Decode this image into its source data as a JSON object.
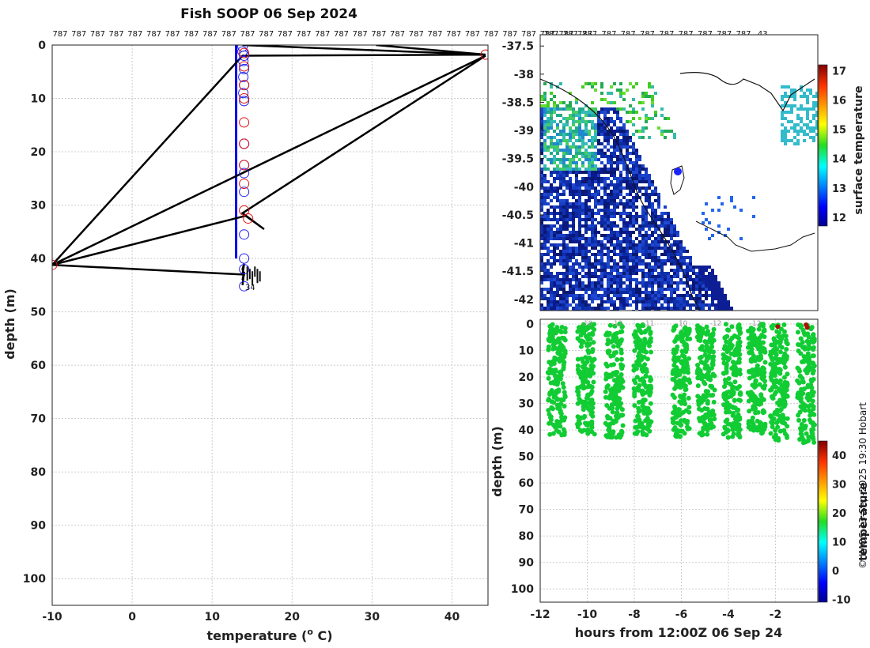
{
  "page": {
    "title": "Fish SOOP 06 Sep 2024",
    "credit": "© IMOS 13-Sep-2025 19:30 Hobart"
  },
  "chart_data": [
    {
      "id": "profile",
      "type": "line",
      "xlabel": "temperature (o C)",
      "xlabel_main": "temperature (",
      "xlabel_sup": "o",
      "xlabel_tail": " C)",
      "ylabel": "depth (m)",
      "xlim": [
        -10,
        44.5
      ],
      "ylim": [
        0,
        105
      ],
      "y_reversed": true,
      "x_ticks": [
        -10,
        0,
        10,
        20,
        30,
        40
      ],
      "y_ticks": [
        0,
        10,
        20,
        30,
        40,
        50,
        60,
        70,
        80,
        90,
        100
      ],
      "grid": true,
      "top_labels": [
        "787",
        "787",
        "787",
        "787",
        "787",
        "787",
        "787",
        "787",
        "787",
        "787",
        "787",
        "787",
        "787",
        "787",
        "787",
        "787",
        "787",
        "787",
        "787",
        "787",
        "787",
        "787",
        "787",
        "787",
        "787",
        "787",
        "787",
        "787",
        "787"
      ],
      "series": [
        {
          "name": "downcast",
          "color": "#0000ee",
          "x": [
            13.0,
            13.0
          ],
          "y": [
            0,
            40
          ]
        },
        {
          "name": "raw trace",
          "color": "#000000",
          "x": [
            30.5,
            44.2,
            13.8,
            44.2,
            13.8,
            -10.0,
            44.2,
            13.8,
            16.5,
            14.2,
            -10.0,
            13.8,
            14.0,
            13.8,
            14.0,
            13.8,
            14.0,
            13.8
          ],
          "y": [
            0,
            1.8,
            0,
            1.8,
            2.0,
            41.2,
            2.0,
            31.5,
            34.5,
            32.0,
            41.2,
            43.0,
            41.0,
            42.0,
            43.0,
            44.0,
            42.5,
            45.0
          ]
        }
      ],
      "blue_markers": [
        [
          13.8,
          0.3
        ],
        [
          13.8,
          1.2
        ],
        [
          14.0,
          2.0
        ],
        [
          13.9,
          3.0
        ],
        [
          14.0,
          4.5
        ],
        [
          13.9,
          6.0
        ],
        [
          14.0,
          7.5
        ],
        [
          13.9,
          9.0
        ],
        [
          14.0,
          10.5
        ],
        [
          14.0,
          18.5
        ],
        [
          14.0,
          22.5
        ],
        [
          14.0,
          24.0
        ],
        [
          14.0,
          27.5
        ],
        [
          14.0,
          35.5
        ],
        [
          14.0,
          40.0
        ],
        [
          14.0,
          42.0
        ],
        [
          14.0,
          45.2
        ]
      ],
      "red_markers": [
        [
          44.2,
          1.8
        ],
        [
          -10.0,
          41.2
        ],
        [
          14.0,
          1.5
        ],
        [
          14.0,
          4.0
        ],
        [
          14.0,
          7.5
        ],
        [
          14.0,
          10.0
        ],
        [
          14.0,
          14.5
        ],
        [
          14.0,
          18.5
        ],
        [
          14.0,
          22.5
        ],
        [
          14.0,
          26.0
        ],
        [
          14.0,
          31.0
        ],
        [
          14.5,
          32.5
        ]
      ],
      "annotation": "34"
    },
    {
      "id": "sst_map",
      "type": "heatmap",
      "ylim": [
        -42.2,
        -37.3
      ],
      "y_ticks": [
        -37.5,
        -38,
        -38.5,
        -39,
        -39.5,
        -40,
        -40.5,
        -41,
        -41.5,
        -42
      ],
      "top_labels": [
        "787",
        "787",
        "787",
        "787",
        "787",
        "787",
        "787",
        "787",
        "787",
        "787",
        "787",
        "43"
      ],
      "colorbar_label": "surface temperature",
      "colorbar_range": [
        11.7,
        17.2
      ],
      "colorbar_ticks": [
        12,
        13,
        14,
        15,
        16,
        17
      ],
      "vessel_marker": "blue dot"
    },
    {
      "id": "depth_time",
      "type": "scatter",
      "xlabel": "hours from 12:00Z 06 Sep 24",
      "ylabel": "depth (m)",
      "xlim": [
        -12,
        -0.2
      ],
      "ylim": [
        0,
        105
      ],
      "y_reversed": true,
      "x_ticks": [
        -12,
        -10,
        -8,
        -6,
        -4,
        -2
      ],
      "y_ticks": [
        0,
        10,
        20,
        30,
        40,
        50,
        60,
        70,
        80,
        90,
        100
      ],
      "colorbar_label": "temperature",
      "colorbar_range": [
        -11,
        45
      ],
      "colorbar_ticks": [
        -10,
        0,
        10,
        20,
        30,
        40
      ],
      "point_color": "#11cc33",
      "hot_color": "#aa1100",
      "bursts": [
        [
          -11.3,
          0,
          42
        ],
        [
          -10.05,
          0,
          42
        ],
        [
          -8.85,
          0,
          43
        ],
        [
          -7.65,
          0,
          42
        ],
        [
          -6.0,
          0,
          43
        ],
        [
          -4.95,
          0,
          42
        ],
        [
          -3.85,
          0,
          43
        ],
        [
          -2.8,
          0,
          42
        ],
        [
          -1.85,
          0,
          44
        ],
        [
          -0.7,
          0,
          45
        ]
      ],
      "top_labels": [
        "-10",
        "-12",
        "-11",
        "-10",
        "-12",
        "-12"
      ],
      "hot_points": [
        [
          -1.9,
          1.0
        ],
        [
          -0.7,
          0.3
        ],
        [
          -0.65,
          1.3
        ]
      ]
    }
  ]
}
